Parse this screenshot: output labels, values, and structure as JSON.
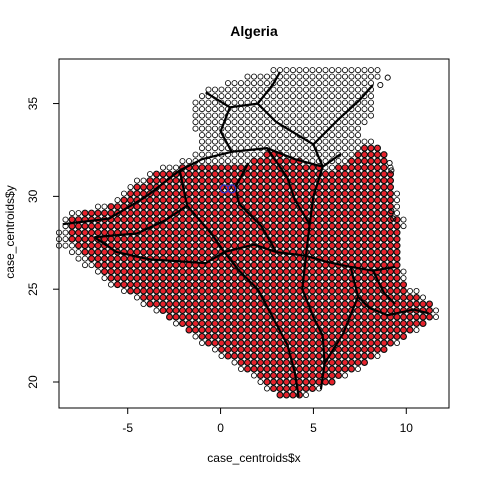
{
  "chart_data": {
    "type": "scatter",
    "title": "Algeria",
    "xlabel": "case_centroids$x",
    "ylabel": "case_centroids$y",
    "xlim": [
      -8.7,
      12.3
    ],
    "ylim": [
      18.6,
      37.4
    ],
    "x_ticks": [
      -5,
      0,
      5,
      10
    ],
    "y_ticks": [
      20,
      25,
      30,
      35
    ],
    "x_tick_labels": [
      "-5",
      "0",
      "5",
      "10"
    ],
    "y_tick_labels": [
      "20",
      "25",
      "30",
      "35"
    ],
    "grid": false,
    "legend": "none",
    "series": [
      {
        "marker": "open-circle",
        "color": "#000000",
        "fill_region": "grid cells covering Algeria",
        "region_polygon": [
          [
            -8.7,
            28.4
          ],
          [
            -8.0,
            29.2
          ],
          [
            -6.0,
            29.6
          ],
          [
            -5.0,
            30.5
          ],
          [
            -3.6,
            31.5
          ],
          [
            -2.0,
            32.0
          ],
          [
            -1.2,
            32.5
          ],
          [
            -1.6,
            35.0
          ],
          [
            -0.8,
            35.8
          ],
          [
            0.9,
            36.4
          ],
          [
            3.0,
            36.9
          ],
          [
            5.0,
            36.9
          ],
          [
            7.0,
            37.0
          ],
          [
            8.6,
            36.9
          ],
          [
            8.3,
            35.5
          ],
          [
            8.1,
            34.2
          ],
          [
            7.5,
            33.4
          ],
          [
            9.0,
            32.4
          ],
          [
            9.5,
            30.2
          ],
          [
            9.9,
            28.8
          ],
          [
            9.8,
            27.6
          ],
          [
            9.8,
            26.2
          ],
          [
            10.2,
            25.2
          ],
          [
            11.5,
            24.3
          ],
          [
            11.9,
            23.6
          ],
          [
            10.0,
            22.4
          ],
          [
            8.0,
            21.0
          ],
          [
            6.0,
            19.8
          ],
          [
            4.5,
            19.2
          ],
          [
            3.3,
            19.0
          ],
          [
            1.8,
            20.2
          ],
          [
            0.0,
            21.4
          ],
          [
            -2.0,
            22.8
          ],
          [
            -4.8,
            24.6
          ],
          [
            -5.6,
            25.0
          ],
          [
            -8.7,
            27.3
          ]
        ],
        "grid_step": 0.35
      },
      {
        "marker": "filled-dot",
        "color": "#e8202a",
        "fill_region": "southern desert cells",
        "region_polygon": [
          [
            -8.0,
            29.0
          ],
          [
            -6.0,
            29.4
          ],
          [
            -5.0,
            30.2
          ],
          [
            -3.6,
            31.2
          ],
          [
            -2.0,
            31.6
          ],
          [
            1.5,
            31.8
          ],
          [
            2.8,
            32.5
          ],
          [
            4.0,
            32.0
          ],
          [
            6.0,
            31.4
          ],
          [
            7.4,
            32.4
          ],
          [
            8.3,
            33.0
          ],
          [
            9.0,
            32.0
          ],
          [
            9.4,
            30.0
          ],
          [
            9.6,
            28.0
          ],
          [
            9.6,
            26.2
          ],
          [
            10.0,
            25.0
          ],
          [
            11.5,
            24.2
          ],
          [
            11.6,
            23.6
          ],
          [
            10.0,
            22.5
          ],
          [
            8.0,
            21.1
          ],
          [
            6.0,
            20.0
          ],
          [
            4.5,
            19.3
          ],
          [
            3.3,
            19.2
          ],
          [
            1.8,
            20.4
          ],
          [
            0.0,
            21.6
          ],
          [
            -2.0,
            23.0
          ],
          [
            -4.8,
            24.8
          ],
          [
            -5.6,
            25.2
          ],
          [
            -8.0,
            27.4
          ]
        ],
        "grid_step": 0.35
      },
      {
        "marker": "line",
        "color": "#000000",
        "lines": [
          [
            [
              -8.5,
              28.5
            ],
            [
              -6.0,
              28.8
            ],
            [
              -4.0,
              30.0
            ],
            [
              -2.2,
              31.4
            ],
            [
              -1.0,
              32.0
            ],
            [
              0.6,
              32.4
            ],
            [
              2.5,
              32.6
            ],
            [
              4.0,
              32.0
            ],
            [
              5.5,
              31.6
            ],
            [
              6.5,
              32.3
            ]
          ],
          [
            [
              -2.2,
              31.4
            ],
            [
              -1.8,
              29.5
            ],
            [
              -0.5,
              28.0
            ],
            [
              0.2,
              27.0
            ],
            [
              1.0,
              26.0
            ],
            [
              2.0,
              25.0
            ],
            [
              2.8,
              23.5
            ],
            [
              3.6,
              22.0
            ],
            [
              4.0,
              20.5
            ],
            [
              4.2,
              19.2
            ]
          ],
          [
            [
              0.2,
              27.0
            ],
            [
              1.8,
              27.4
            ],
            [
              3.0,
              27.0
            ],
            [
              4.6,
              26.8
            ],
            [
              5.6,
              26.5
            ],
            [
              7.0,
              26.2
            ],
            [
              8.2,
              26.0
            ],
            [
              9.4,
              26.2
            ]
          ],
          [
            [
              5.5,
              31.6
            ],
            [
              5.0,
              30.0
            ],
            [
              4.8,
              28.5
            ],
            [
              4.6,
              26.8
            ],
            [
              4.4,
              25.0
            ],
            [
              5.0,
              23.5
            ],
            [
              5.5,
              22.5
            ],
            [
              5.6,
              21.0
            ],
            [
              5.4,
              19.6
            ]
          ],
          [
            [
              -0.8,
              35.6
            ],
            [
              0.5,
              34.8
            ],
            [
              2.0,
              35.0
            ],
            [
              3.0,
              34.0
            ],
            [
              4.0,
              33.4
            ],
            [
              5.0,
              32.8
            ],
            [
              5.5,
              31.6
            ]
          ],
          [
            [
              2.0,
              35.0
            ],
            [
              2.8,
              36.0
            ],
            [
              3.2,
              36.7
            ]
          ],
          [
            [
              0.5,
              34.8
            ],
            [
              0.0,
              33.5
            ],
            [
              0.6,
              32.4
            ]
          ],
          [
            [
              5.0,
              32.8
            ],
            [
              6.4,
              34.2
            ],
            [
              7.5,
              35.2
            ],
            [
              8.2,
              36.0
            ]
          ],
          [
            [
              -3.8,
              26.6
            ],
            [
              -2.2,
              26.5
            ],
            [
              -0.8,
              26.4
            ],
            [
              0.2,
              27.0
            ]
          ],
          [
            [
              -6.8,
              27.8
            ],
            [
              -5.6,
              27.0
            ],
            [
              -3.8,
              26.6
            ]
          ],
          [
            [
              7.4,
              24.6
            ],
            [
              8.0,
              24.0
            ],
            [
              9.0,
              23.6
            ],
            [
              10.4,
              23.9
            ],
            [
              11.2,
              23.7
            ]
          ],
          [
            [
              7.0,
              26.2
            ],
            [
              7.4,
              24.6
            ],
            [
              6.6,
              22.6
            ],
            [
              5.6,
              21.0
            ]
          ],
          [
            [
              1.5,
              31.8
            ],
            [
              0.8,
              30.5
            ],
            [
              1.0,
              29.6
            ],
            [
              2.2,
              28.4
            ],
            [
              3.0,
              27.0
            ]
          ],
          [
            [
              2.5,
              32.6
            ],
            [
              3.6,
              31.0
            ],
            [
              4.0,
              29.8
            ],
            [
              4.8,
              28.5
            ]
          ],
          [
            [
              -1.8,
              29.5
            ],
            [
              -3.0,
              28.7
            ],
            [
              -4.5,
              28.0
            ],
            [
              -6.8,
              27.8
            ]
          ],
          [
            [
              8.2,
              26.0
            ],
            [
              8.8,
              24.8
            ],
            [
              9.4,
              24.2
            ]
          ]
        ]
      },
      {
        "marker": "open-circle",
        "color": "#3333cc",
        "points": [
          [
            0.2,
            30.4
          ],
          [
            0.6,
            30.4
          ]
        ]
      },
      {
        "marker": "open-circle",
        "color": "#000000",
        "points": [
          [
            9.2,
            29.2
          ],
          [
            9.3,
            28.8
          ],
          [
            9.1,
            31.8
          ],
          [
            9.2,
            31.4
          ],
          [
            8.6,
            36.0
          ],
          [
            9.0,
            36.4
          ]
        ]
      }
    ]
  }
}
